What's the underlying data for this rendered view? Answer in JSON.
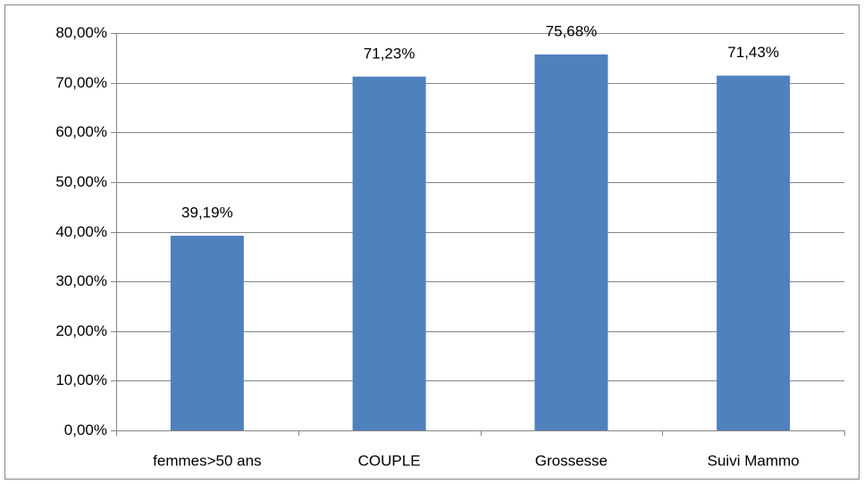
{
  "chart_data": {
    "type": "bar",
    "categories": [
      "femmes>50 ans",
      "COUPLE",
      "Grossesse",
      "Suivi Mammo"
    ],
    "values": [
      39.19,
      71.23,
      75.68,
      71.43
    ],
    "value_labels": [
      "39,19%",
      "71,23%",
      "75,68%",
      "71,43%"
    ],
    "color": "#4f81bd",
    "ylim": [
      0,
      80
    ],
    "yticks": [
      {
        "value": 0,
        "label": "0,00%"
      },
      {
        "value": 10,
        "label": "10,00%"
      },
      {
        "value": 20,
        "label": "20,00%"
      },
      {
        "value": 30,
        "label": "30,00%"
      },
      {
        "value": 40,
        "label": "40,00%"
      },
      {
        "value": 50,
        "label": "50,00%"
      },
      {
        "value": 60,
        "label": "60,00%"
      },
      {
        "value": 70,
        "label": "70,00%"
      },
      {
        "value": 80,
        "label": "80,00%"
      }
    ],
    "grid": true
  }
}
